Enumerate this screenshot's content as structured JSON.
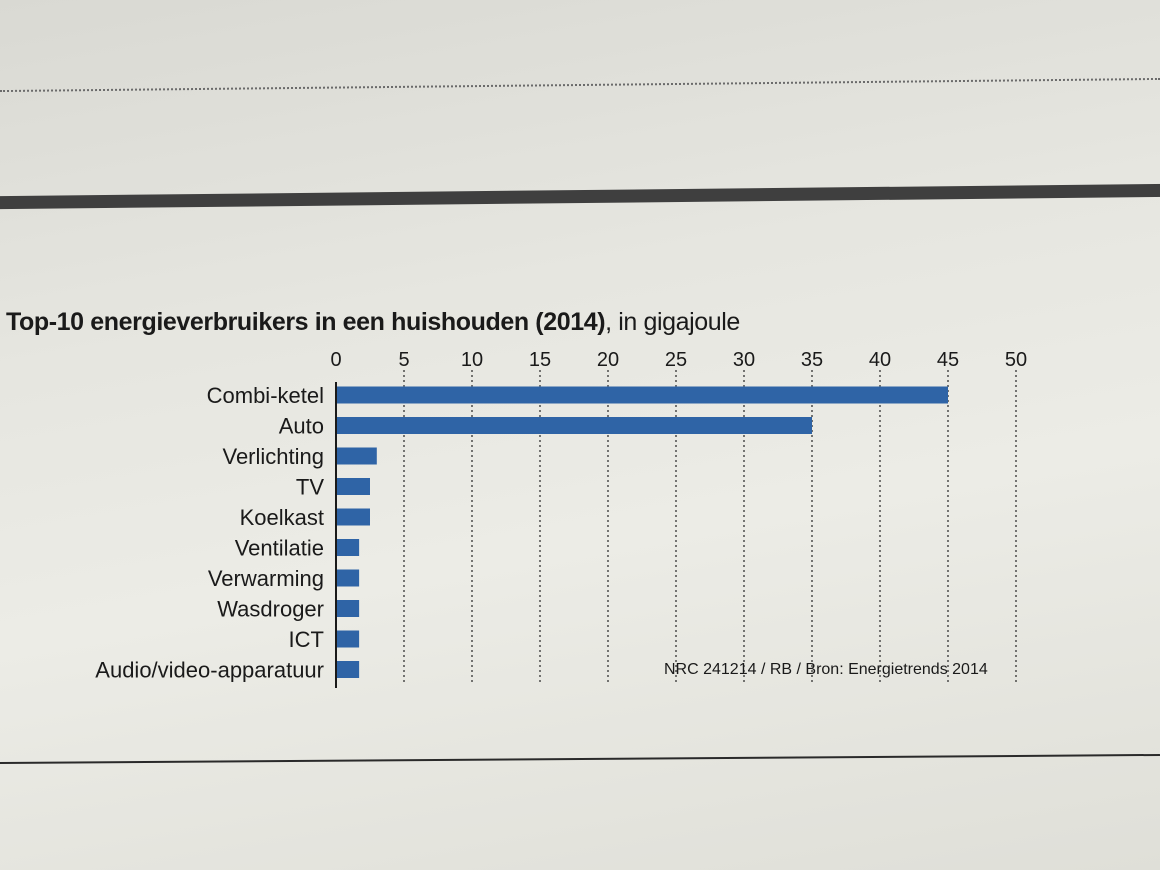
{
  "chart_data": {
    "type": "bar",
    "orientation": "horizontal",
    "title": "Top-10 energieverbruikers in een huishouden (2014)",
    "subtitle": ", in gigajoule",
    "categories": [
      "Combi-ketel",
      "Auto",
      "Verlichting",
      "TV",
      "Koelkast",
      "Ventilatie",
      "Verwarming",
      "Wasdroger",
      "ICT",
      "Audio/video-apparatuur"
    ],
    "values": [
      45,
      35,
      3,
      2.5,
      2.5,
      1.7,
      1.7,
      1.7,
      1.7,
      1.7
    ],
    "xticks": [
      "0",
      "5",
      "10",
      "15",
      "20",
      "25",
      "30",
      "35",
      "40",
      "45",
      "50"
    ],
    "xlim": [
      0,
      50
    ],
    "grid": "vertical dotted",
    "bar_color": "#2f64a6",
    "source": "NRC 241214 / RB / Bron: Energietrends 2014"
  }
}
